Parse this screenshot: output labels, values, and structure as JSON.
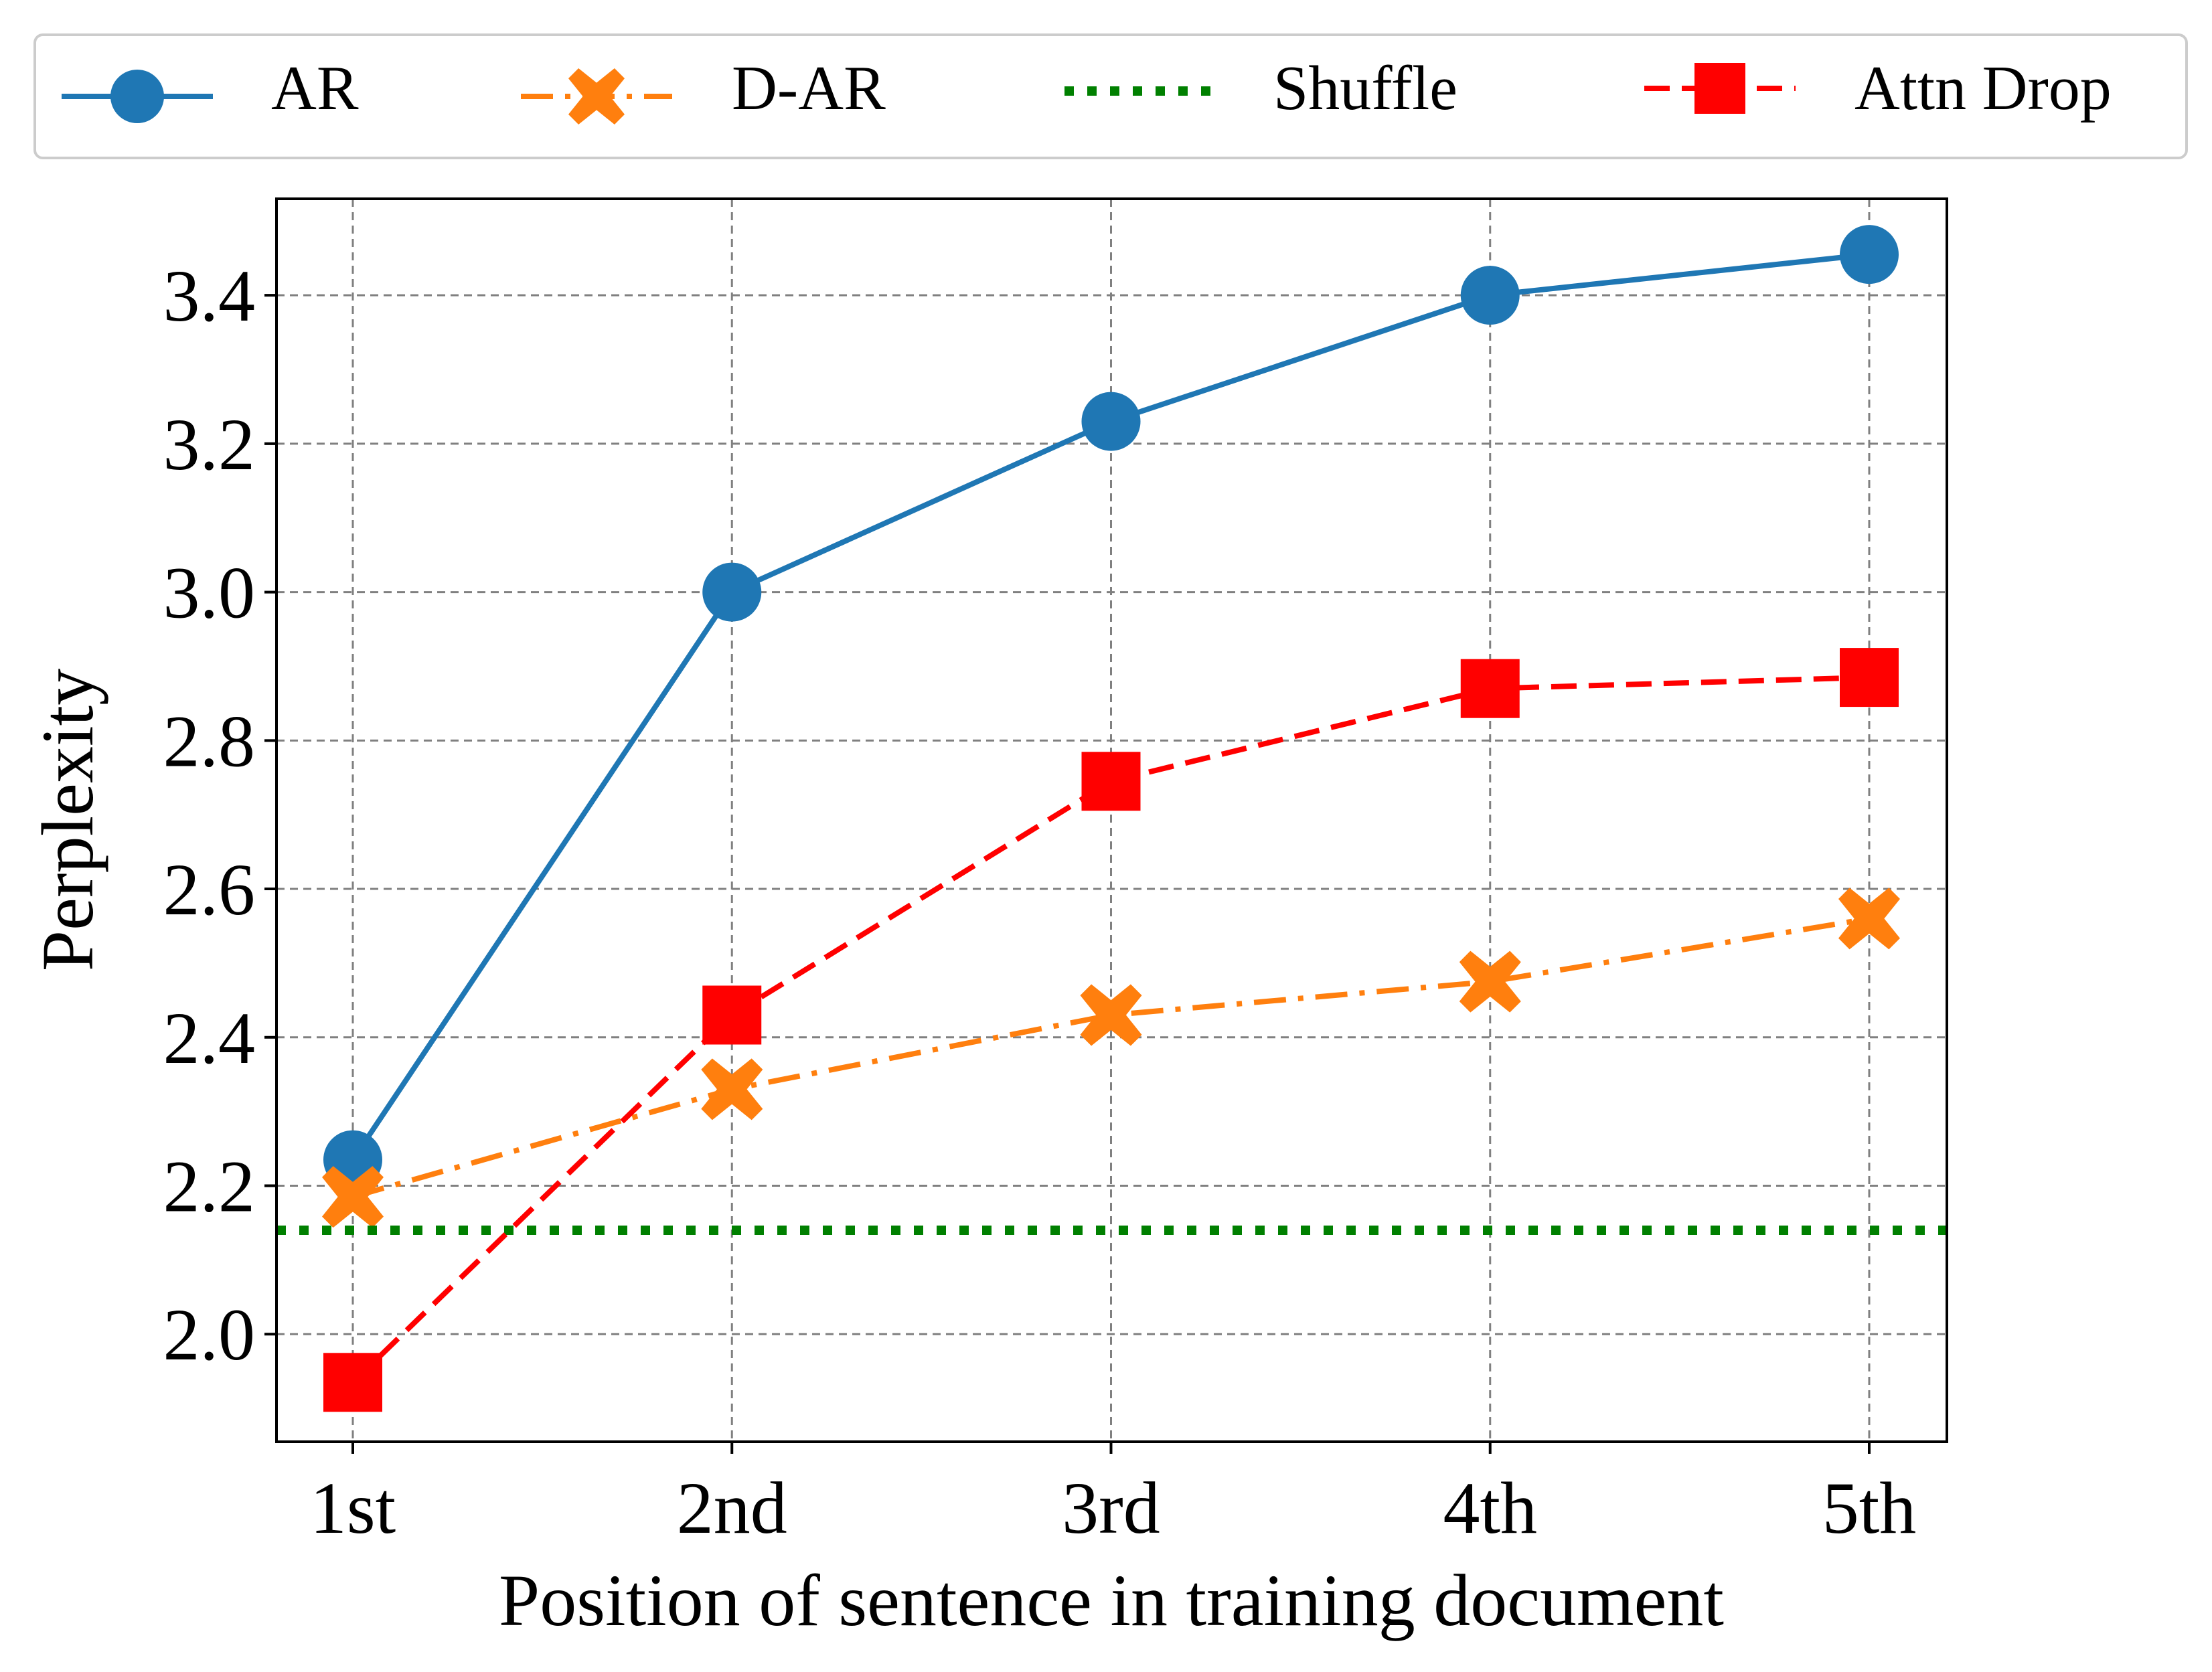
{
  "chart_data": {
    "type": "line",
    "title": "",
    "xlabel": "Position of sentence in training document",
    "ylabel": "Perplexity",
    "categories": [
      "1st",
      "2nd",
      "3rd",
      "4th",
      "5th"
    ],
    "ylim": [
      1.855,
      3.53
    ],
    "yticks": [
      2.0,
      2.2,
      2.4,
      2.6,
      2.8,
      3.0,
      3.2,
      3.4
    ],
    "ytick_labels": [
      "2.0",
      "2.2",
      "2.4",
      "2.6",
      "2.8",
      "3.0",
      "3.2",
      "3.4"
    ],
    "grid": true,
    "legend_position": "top, outside, horizontal",
    "series": [
      {
        "name": "AR",
        "color": "#1f77b4",
        "linestyle": "solid",
        "marker": "circle",
        "values": [
          2.235,
          3.0,
          3.23,
          3.4,
          3.455
        ]
      },
      {
        "name": "D-AR",
        "color": "#ff7f0e",
        "linestyle": "dashdot",
        "marker": "x-filled",
        "values": [
          2.185,
          2.33,
          2.43,
          2.475,
          2.56
        ]
      },
      {
        "name": "Shuffle",
        "color": "#008000",
        "linestyle": "dotted",
        "marker": "none",
        "hline": 2.14
      },
      {
        "name": "Attn Drop",
        "color": "#ff0000",
        "linestyle": "dashed",
        "marker": "square",
        "values": [
          1.935,
          2.43,
          2.745,
          2.87,
          2.885
        ]
      }
    ]
  }
}
